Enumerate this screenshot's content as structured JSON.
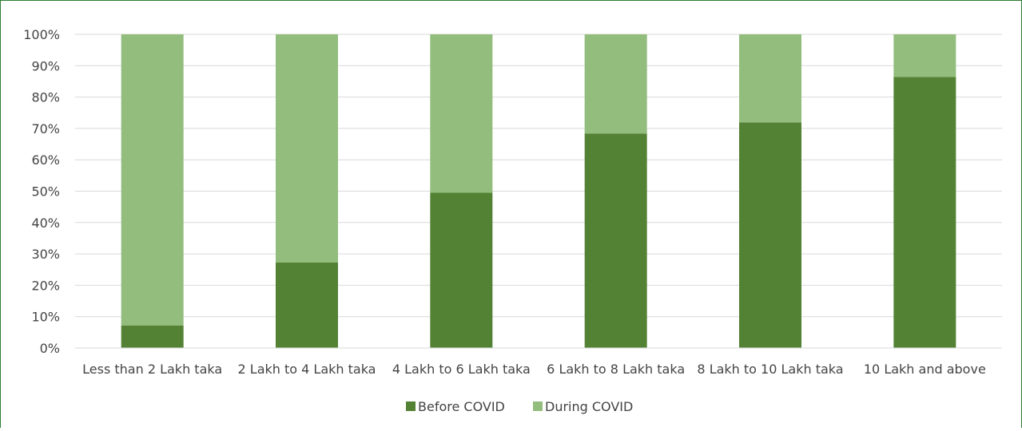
{
  "chart_data": {
    "type": "bar",
    "stacked": true,
    "percent_stacked": true,
    "categories": [
      "Less than 2 Lakh taka",
      "2 Lakh to 4 Lakh taka",
      "4 Lakh to 6 Lakh taka",
      "6 Lakh to 8 Lakh taka",
      "8 Lakh to 10 Lakh taka",
      "10 Lakh and above"
    ],
    "series": [
      {
        "name": "Before COVID",
        "color": "#548235",
        "values": [
          7.2,
          27.3,
          49.5,
          68.4,
          71.9,
          86.4
        ]
      },
      {
        "name": "During COVID",
        "color": "#92BD7C",
        "values": [
          92.8,
          72.7,
          50.5,
          31.6,
          28.1,
          13.6
        ]
      }
    ],
    "ylim": [
      0,
      100
    ],
    "yticks": [
      "0%",
      "10%",
      "20%",
      "30%",
      "40%",
      "50%",
      "60%",
      "70%",
      "80%",
      "90%",
      "100%"
    ],
    "grid": true,
    "legend_position": "bottom",
    "title": "",
    "xlabel": "",
    "ylabel": ""
  }
}
